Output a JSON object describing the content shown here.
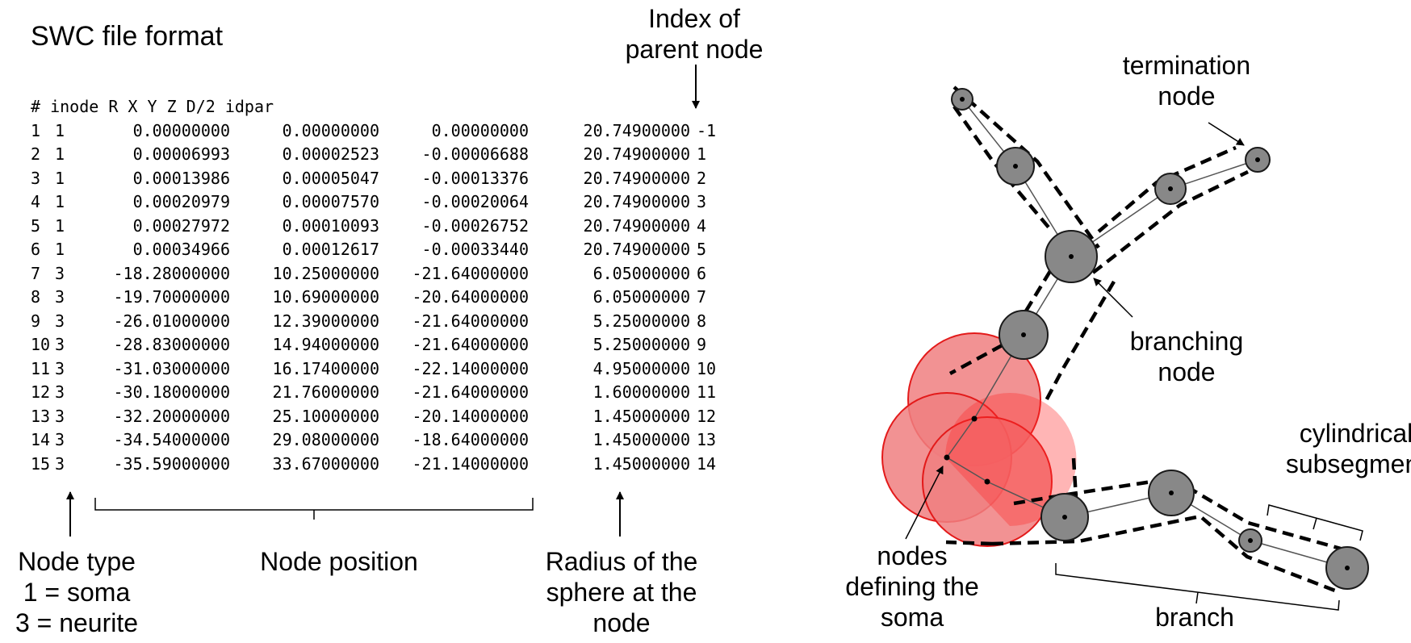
{
  "title": "SWC file format",
  "labels": {
    "parent_index": "Index of\nparent node",
    "node_type": "Node type\n1 = soma\n3 = neurite",
    "node_position": "Node position",
    "radius": "Radius of the\nsphere at the\nnode",
    "termination": "termination\nnode",
    "branching": "branching\nnode",
    "soma_nodes": "nodes\ndefining the\nsoma",
    "cylindrical": "cylindrical\nsubsegment",
    "branch": "branch"
  },
  "swc": {
    "header": "# inode R X Y Z D/2 idpar",
    "rows": [
      [
        "1",
        "1",
        "0.00000000",
        "0.00000000",
        "0.00000000",
        "20.74900000",
        "-1"
      ],
      [
        "2",
        "1",
        "0.00006993",
        "0.00002523",
        "-0.00006688",
        "20.74900000",
        "1"
      ],
      [
        "3",
        "1",
        "0.00013986",
        "0.00005047",
        "-0.00013376",
        "20.74900000",
        "2"
      ],
      [
        "4",
        "1",
        "0.00020979",
        "0.00007570",
        "-0.00020064",
        "20.74900000",
        "3"
      ],
      [
        "5",
        "1",
        "0.00027972",
        "0.00010093",
        "-0.00026752",
        "20.74900000",
        "4"
      ],
      [
        "6",
        "1",
        "0.00034966",
        "0.00012617",
        "-0.00033440",
        "20.74900000",
        "5"
      ],
      [
        "7",
        "3",
        "-18.28000000",
        "10.25000000",
        "-21.64000000",
        "6.05000000",
        "6"
      ],
      [
        "8",
        "3",
        "-19.70000000",
        "10.69000000",
        "-20.64000000",
        "6.05000000",
        "7"
      ],
      [
        "9",
        "3",
        "-26.01000000",
        "12.39000000",
        "-21.64000000",
        "5.25000000",
        "8"
      ],
      [
        "10",
        "3",
        "-28.83000000",
        "14.94000000",
        "-21.64000000",
        "5.25000000",
        "9"
      ],
      [
        "11",
        "3",
        "-31.03000000",
        "16.17400000",
        "-22.14000000",
        "4.95000000",
        "10"
      ],
      [
        "12",
        "3",
        "-30.18000000",
        "21.76000000",
        "-21.64000000",
        "1.60000000",
        "11"
      ],
      [
        "13",
        "3",
        "-32.20000000",
        "25.10000000",
        "-20.14000000",
        "1.45000000",
        "12"
      ],
      [
        "14",
        "3",
        "-34.54000000",
        "29.08000000",
        "-18.64000000",
        "1.45000000",
        "13"
      ],
      [
        "15",
        "3",
        "-35.59000000",
        "33.67000000",
        "-21.14000000",
        "1.45000000",
        "14"
      ]
    ]
  },
  "colors": {
    "soma_fill": "#f07f80",
    "soma_core": "#ff2a2a",
    "soma_stroke": "#e31a1a",
    "node_fill": "#888888",
    "node_stroke": "#1a1a1a"
  }
}
